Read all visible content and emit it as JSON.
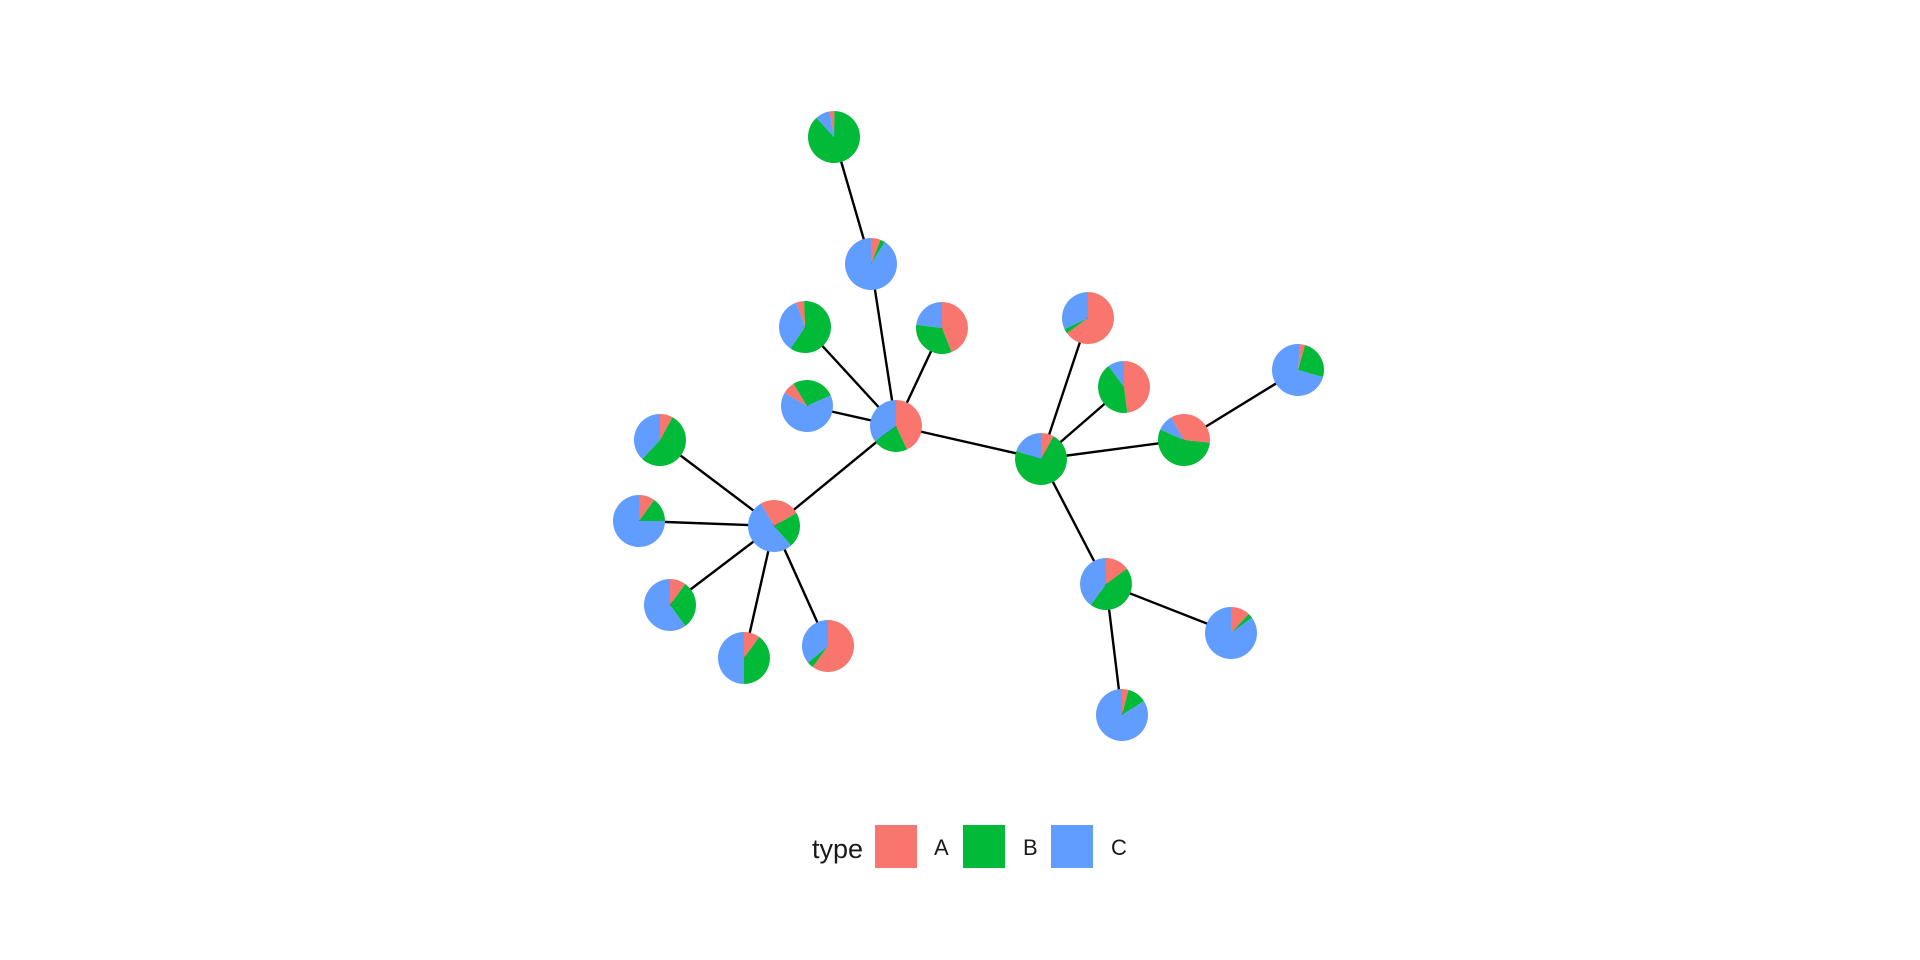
{
  "colors": {
    "A": "#F8766D",
    "B": "#00BA38",
    "C": "#619CFF"
  },
  "legend": {
    "title": "type",
    "items": [
      {
        "key": "A",
        "label": "A",
        "color": "#F8766D"
      },
      {
        "key": "B",
        "label": "B",
        "color": "#00BA38"
      },
      {
        "key": "C",
        "label": "C",
        "color": "#619CFF"
      }
    ]
  },
  "nodes": [
    {
      "id": "n1",
      "shares": {
        "A": 0.43,
        "B": 0.22,
        "C": 0.35
      }
    },
    {
      "id": "n2",
      "shares": {
        "A": 0.25,
        "B": 0.22,
        "C": 0.53
      }
    },
    {
      "id": "n3",
      "shares": {
        "A": 0.08,
        "B": 0.72,
        "C": 0.2
      }
    },
    {
      "id": "n4",
      "shares": {
        "A": 0.06,
        "B": 0.03,
        "C": 0.91
      }
    },
    {
      "id": "n5",
      "shares": {
        "A": 0.03,
        "B": 0.88,
        "C": 0.09
      }
    },
    {
      "id": "n6",
      "shares": {
        "A": 0.05,
        "B": 0.6,
        "C": 0.35
      }
    },
    {
      "id": "n7",
      "shares": {
        "A": 0.08,
        "B": 0.27,
        "C": 0.65
      }
    },
    {
      "id": "n8",
      "shares": {
        "A": 0.44,
        "B": 0.33,
        "C": 0.23
      }
    },
    {
      "id": "n9",
      "shares": {
        "A": 0.08,
        "B": 0.54,
        "C": 0.38
      }
    },
    {
      "id": "n10",
      "shares": {
        "A": 0.1,
        "B": 0.15,
        "C": 0.75
      }
    },
    {
      "id": "n11",
      "shares": {
        "A": 0.1,
        "B": 0.3,
        "C": 0.6
      }
    },
    {
      "id": "n12",
      "shares": {
        "A": 0.1,
        "B": 0.4,
        "C": 0.5
      }
    },
    {
      "id": "n13",
      "shares": {
        "A": 0.6,
        "B": 0.04,
        "C": 0.36
      }
    },
    {
      "id": "n14",
      "shares": {
        "A": 0.65,
        "B": 0.03,
        "C": 0.32
      }
    },
    {
      "id": "n15",
      "shares": {
        "A": 0.48,
        "B": 0.42,
        "C": 0.1
      }
    },
    {
      "id": "n16",
      "shares": {
        "A": 0.35,
        "B": 0.55,
        "C": 0.1
      }
    },
    {
      "id": "n17",
      "shares": {
        "A": 0.03,
        "B": 0.25,
        "C": 0.72
      }
    },
    {
      "id": "n18",
      "shares": {
        "A": 0.15,
        "B": 0.45,
        "C": 0.4
      }
    },
    {
      "id": "n19",
      "shares": {
        "A": 0.12,
        "B": 0.03,
        "C": 0.85
      }
    },
    {
      "id": "n20",
      "shares": {
        "A": 0.04,
        "B": 0.12,
        "C": 0.84
      }
    }
  ],
  "edges": [
    [
      "n1",
      "n2"
    ],
    [
      "n1",
      "n7"
    ],
    [
      "n1",
      "n4"
    ],
    [
      "n1",
      "n6"
    ],
    [
      "n1",
      "n8"
    ],
    [
      "n1",
      "n3"
    ],
    [
      "n4",
      "n5"
    ],
    [
      "n2",
      "n9"
    ],
    [
      "n2",
      "n10"
    ],
    [
      "n2",
      "n11"
    ],
    [
      "n2",
      "n12"
    ],
    [
      "n2",
      "n13"
    ],
    [
      "n3",
      "n14"
    ],
    [
      "n3",
      "n15"
    ],
    [
      "n3",
      "n16"
    ],
    [
      "n3",
      "n18"
    ],
    [
      "n16",
      "n17"
    ],
    [
      "n18",
      "n19"
    ],
    [
      "n18",
      "n20"
    ]
  ]
}
